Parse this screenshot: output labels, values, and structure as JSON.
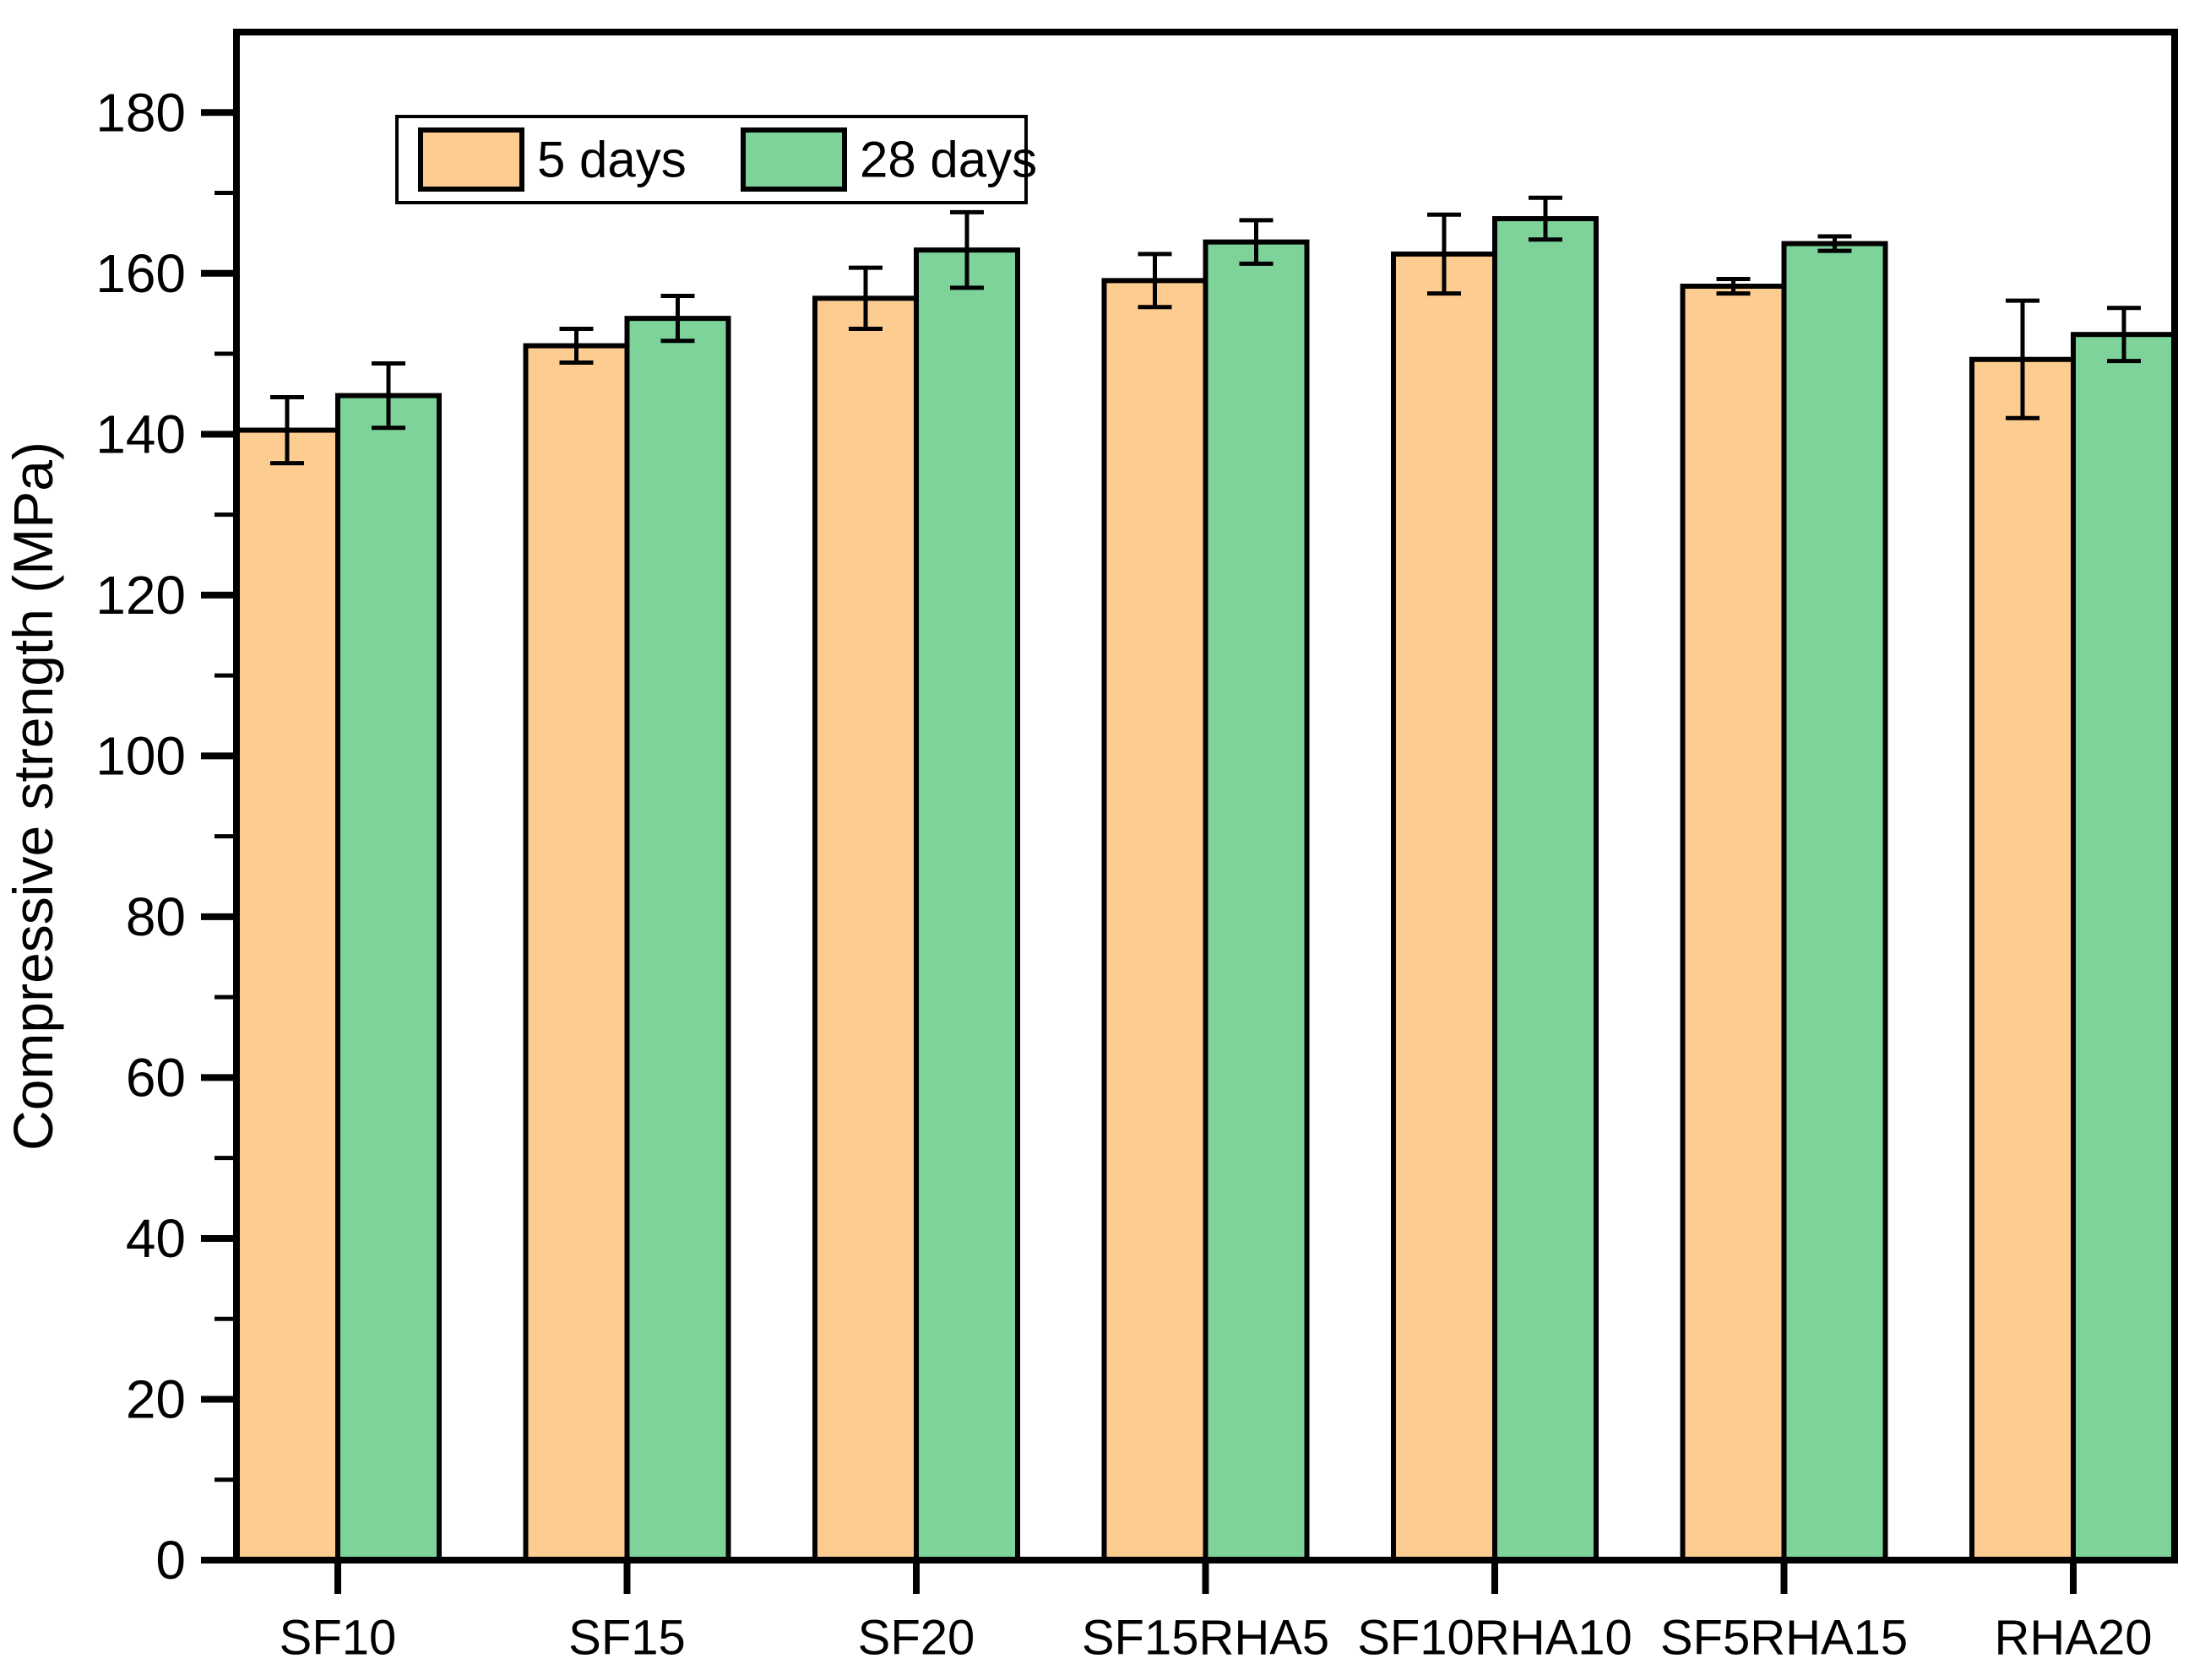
{
  "chart_data": {
    "type": "bar",
    "title": "",
    "xlabel": "",
    "ylabel": "Compressive strength (MPa)",
    "ylim": [
      0,
      190
    ],
    "yticks_major": [
      0,
      20,
      40,
      60,
      80,
      100,
      120,
      140,
      160,
      180
    ],
    "yticks_minor": [
      10,
      30,
      50,
      70,
      90,
      110,
      130,
      150,
      170
    ],
    "grid": false,
    "legend_position": "top-left-inside",
    "categories": [
      "SF10",
      "SF15",
      "SF20",
      "SF15RHA5",
      "SF10RHA10",
      "SF5RHA15",
      "RHA20"
    ],
    "series": [
      {
        "name": "5 days",
        "color": "#FCCC90",
        "values": [
          140.5,
          151.0,
          156.9,
          159.1,
          162.4,
          158.4,
          149.3
        ],
        "errors": [
          4.1,
          2.1,
          3.8,
          3.3,
          4.9,
          0.9,
          7.3
        ]
      },
      {
        "name": "28 days",
        "color": "#7ED39A",
        "values": [
          144.8,
          154.4,
          162.9,
          163.9,
          166.8,
          163.7,
          152.4
        ],
        "errors": [
          4.0,
          2.8,
          4.7,
          2.7,
          2.6,
          0.9,
          3.3
        ]
      }
    ],
    "bar_edge_color": "#000000",
    "error_bar_color": "#000000",
    "axis_color": "#000000",
    "plot_background": "#ffffff"
  }
}
